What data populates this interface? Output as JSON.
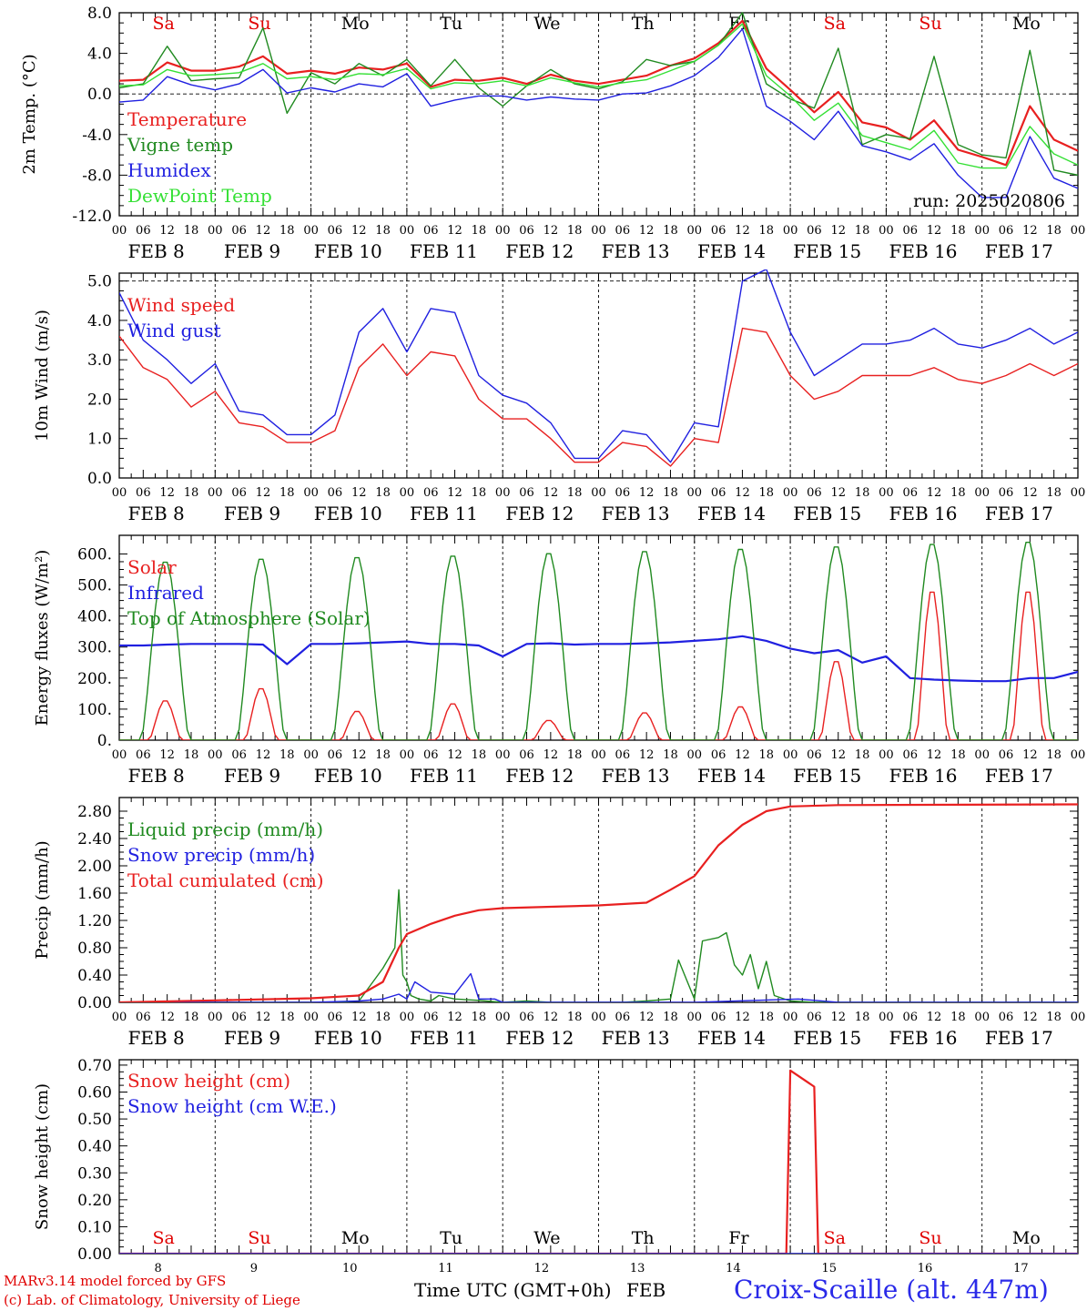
{
  "footer": {
    "credit_line1": "MARv3.14 model forced by GFS",
    "credit_line2": "(c) Lab. of Climatology, University of Liege",
    "xlabel": "Time UTC (GMT+0h)",
    "xunit": "FEB",
    "station": "Croix-Scaille (alt. 447m)"
  },
  "common": {
    "days": [
      "FEB  8",
      "FEB  9",
      "FEB 10",
      "FEB 11",
      "FEB 12",
      "FEB 13",
      "FEB 14",
      "FEB 15",
      "FEB 16",
      "FEB 17"
    ],
    "hour_ticks": [
      "00",
      "06",
      "12",
      "18"
    ],
    "final_tick": "00",
    "weekdays": [
      "Sa",
      "Su",
      "Mo",
      "Tu",
      "We",
      "Th",
      "Fr",
      "Sa",
      "Su",
      "Mo"
    ],
    "weekday_colors": [
      "#e00000",
      "#e00000",
      "#000000",
      "#000000",
      "#000000",
      "#000000",
      "#000000",
      "#e00000",
      "#e00000",
      "#000000"
    ],
    "day_numbers": [
      "8",
      "9",
      "10",
      "11",
      "12",
      "13",
      "14",
      "15",
      "16",
      "17"
    ],
    "time_start": "2025-02-08 00:00",
    "time_end": "2025-02-18 00:00"
  },
  "chart_data": [
    {
      "type": "line",
      "ylabel": "2m Temp. (°C)",
      "yticks": [
        "8.0",
        "4.0",
        "0.0",
        "-4.0",
        "-8.0",
        "-12.0"
      ],
      "ylim": [
        -12,
        8
      ],
      "reference_line": 0,
      "annotation": "run: 2025020806",
      "show_weekdays": true,
      "series": [
        {
          "name": "Temperature",
          "color": "#e82020",
          "hours": [
            0,
            6,
            12,
            18,
            24,
            30,
            36,
            42,
            48,
            54,
            60,
            66,
            72,
            78,
            84,
            90,
            96,
            102,
            108,
            114,
            120,
            126,
            132,
            138,
            144,
            150,
            156,
            162,
            168,
            174,
            180,
            186,
            192,
            198,
            204,
            210,
            216,
            222,
            228,
            234,
            240
          ],
          "values": [
            1.3,
            1.4,
            3.1,
            2.3,
            2.3,
            2.7,
            3.7,
            2.0,
            2.3,
            2.0,
            2.6,
            2.4,
            3.0,
            0.7,
            1.4,
            1.3,
            1.6,
            1.0,
            1.9,
            1.3,
            1.0,
            1.4,
            1.8,
            2.8,
            3.5,
            5.0,
            7.2,
            2.5,
            0.4,
            -1.8,
            0.2,
            -2.8,
            -3.3,
            -4.5,
            -2.6,
            -5.5,
            -6.2,
            -7.0,
            -1.2,
            -4.5,
            -5.6
          ]
        },
        {
          "name": "Vigne temp",
          "color": "#208a20",
          "hours": [
            0,
            6,
            12,
            18,
            24,
            30,
            36,
            42,
            48,
            54,
            60,
            66,
            72,
            78,
            84,
            90,
            96,
            102,
            108,
            114,
            120,
            126,
            132,
            138,
            144,
            150,
            156,
            162,
            168,
            174,
            180,
            186,
            192,
            198,
            204,
            210,
            216,
            222,
            228,
            234,
            240
          ],
          "values": [
            0.6,
            1.0,
            4.7,
            1.3,
            1.5,
            1.6,
            6.5,
            -1.9,
            2.1,
            1.0,
            3.0,
            1.8,
            3.4,
            0.8,
            3.4,
            0.6,
            -1.2,
            0.8,
            2.4,
            1.0,
            0.5,
            1.2,
            3.4,
            2.8,
            3.2,
            4.8,
            8.0,
            1.0,
            -0.5,
            -1.4,
            4.5,
            -5.0,
            -4.0,
            -4.4,
            3.7,
            -5.0,
            -6.0,
            -6.3,
            4.3,
            -7.5,
            -8.0
          ]
        },
        {
          "name": "Humidex",
          "color": "#2020e0",
          "hours": [
            0,
            6,
            12,
            18,
            24,
            30,
            36,
            42,
            48,
            54,
            60,
            66,
            72,
            78,
            84,
            90,
            96,
            102,
            108,
            114,
            120,
            126,
            132,
            138,
            144,
            150,
            156,
            162,
            168,
            174,
            180,
            186,
            192,
            198,
            204,
            210,
            216,
            222,
            228,
            234,
            240
          ],
          "values": [
            -0.8,
            -0.6,
            1.7,
            0.9,
            0.4,
            1.0,
            2.4,
            0.1,
            0.6,
            0.2,
            1.0,
            0.7,
            2.0,
            -1.2,
            -0.6,
            -0.2,
            -0.2,
            -0.6,
            -0.3,
            -0.5,
            -0.6,
            0.0,
            0.1,
            0.8,
            1.8,
            3.6,
            6.4,
            -1.2,
            -2.7,
            -4.5,
            -1.7,
            -5.1,
            -5.7,
            -6.5,
            -4.9,
            -8.0,
            -10.2,
            -10.2,
            -4.2,
            -8.3,
            -9.3
          ]
        },
        {
          "name": "DewPoint Temp",
          "color": "#34e034",
          "hours": [
            0,
            6,
            12,
            18,
            24,
            30,
            36,
            42,
            48,
            54,
            60,
            66,
            72,
            78,
            84,
            90,
            96,
            102,
            108,
            114,
            120,
            126,
            132,
            138,
            144,
            150,
            156,
            162,
            168,
            174,
            180,
            186,
            192,
            198,
            204,
            210,
            216,
            222,
            228,
            234,
            240
          ],
          "values": [
            0.8,
            0.9,
            2.4,
            1.8,
            1.9,
            2.1,
            3.0,
            1.5,
            1.7,
            1.4,
            2.0,
            1.9,
            2.5,
            0.5,
            1.1,
            1.0,
            1.3,
            0.8,
            1.6,
            1.1,
            0.7,
            1.1,
            1.4,
            2.3,
            3.2,
            4.8,
            6.9,
            1.8,
            -0.2,
            -2.6,
            -0.9,
            -4.1,
            -4.8,
            -5.5,
            -3.6,
            -6.8,
            -7.3,
            -7.3,
            -3.2,
            -5.9,
            -7.0
          ]
        }
      ]
    },
    {
      "type": "line",
      "ylabel": "10m Wind (m/s)",
      "yticks": [
        "5.0",
        "4.0",
        "3.0",
        "2.0",
        "1.0",
        "0.0"
      ],
      "ylim": [
        0,
        5.2
      ],
      "reference_line": 5,
      "show_weekdays": false,
      "series": [
        {
          "name": "Wind speed",
          "color": "#e82020",
          "hours": [
            0,
            6,
            12,
            18,
            24,
            30,
            36,
            42,
            48,
            54,
            60,
            66,
            72,
            78,
            84,
            90,
            96,
            102,
            108,
            114,
            120,
            126,
            132,
            138,
            144,
            150,
            156,
            162,
            168,
            174,
            180,
            186,
            192,
            198,
            204,
            210,
            216,
            222,
            228,
            234,
            240
          ],
          "values": [
            3.6,
            2.8,
            2.5,
            1.8,
            2.2,
            1.4,
            1.3,
            0.9,
            0.9,
            1.2,
            2.8,
            3.4,
            2.6,
            3.2,
            3.1,
            2.0,
            1.5,
            1.5,
            1.0,
            0.4,
            0.4,
            0.9,
            0.8,
            0.3,
            1.0,
            0.9,
            3.8,
            3.7,
            2.6,
            2.0,
            2.2,
            2.6,
            2.6,
            2.6,
            2.8,
            2.5,
            2.4,
            2.6,
            2.9,
            2.6,
            2.9
          ]
        },
        {
          "name": "Wind gust",
          "color": "#2020e0",
          "hours": [
            0,
            6,
            12,
            18,
            24,
            30,
            36,
            42,
            48,
            54,
            60,
            66,
            72,
            78,
            84,
            90,
            96,
            102,
            108,
            114,
            120,
            126,
            132,
            138,
            144,
            150,
            156,
            162,
            168,
            174,
            180,
            186,
            192,
            198,
            204,
            210,
            216,
            222,
            228,
            234,
            240
          ],
          "values": [
            4.7,
            3.5,
            3.0,
            2.4,
            2.9,
            1.7,
            1.6,
            1.1,
            1.1,
            1.6,
            3.7,
            4.3,
            3.2,
            4.3,
            4.2,
            2.6,
            2.1,
            1.9,
            1.4,
            0.5,
            0.5,
            1.2,
            1.1,
            0.4,
            1.4,
            1.3,
            5.0,
            5.3,
            3.7,
            2.6,
            3.0,
            3.4,
            3.4,
            3.5,
            3.8,
            3.4,
            3.3,
            3.5,
            3.8,
            3.4,
            3.7
          ]
        }
      ]
    },
    {
      "type": "line",
      "ylabel": "Energy fluxes (W/m²)",
      "yticks": [
        "600.",
        "500.",
        "400.",
        "300.",
        "200.",
        "100.",
        "0."
      ],
      "ylim": [
        0,
        660
      ],
      "show_weekdays": false,
      "series": [
        {
          "name": "Solar",
          "color": "#e82020",
          "peaks_per_day": [
            130,
            170,
            95,
            120,
            65,
            90,
            110,
            260,
            490,
            490
          ]
        },
        {
          "name": "Infrared",
          "color": "#2020e0",
          "hours": [
            0,
            6,
            12,
            18,
            24,
            30,
            36,
            42,
            48,
            54,
            60,
            66,
            72,
            78,
            84,
            90,
            96,
            102,
            108,
            114,
            120,
            126,
            132,
            138,
            144,
            150,
            156,
            162,
            168,
            174,
            180,
            186,
            192,
            198,
            204,
            210,
            216,
            222,
            228,
            234,
            240
          ],
          "values": [
            305,
            305,
            308,
            310,
            310,
            310,
            308,
            245,
            310,
            310,
            312,
            315,
            318,
            310,
            310,
            305,
            270,
            310,
            312,
            308,
            310,
            310,
            312,
            315,
            320,
            325,
            335,
            320,
            295,
            280,
            290,
            250,
            270,
            200,
            195,
            192,
            190,
            190,
            200,
            200,
            220
          ]
        },
        {
          "name": "Top of Atmosphere (Solar)",
          "color": "#208a20",
          "peaks_per_day": [
            580,
            590,
            595,
            600,
            608,
            615,
            622,
            630,
            638,
            645
          ]
        }
      ]
    },
    {
      "type": "line",
      "ylabel": "Precip (mm/h)",
      "yticks": [
        "2.80",
        "2.40",
        "2.00",
        "1.60",
        "1.20",
        "0.80",
        "0.40",
        "0.00"
      ],
      "ylim": [
        0,
        3.0
      ],
      "show_weekdays": false,
      "series": [
        {
          "name": "Liquid precip (mm/h)",
          "color": "#208a20",
          "hours": [
            0,
            6,
            12,
            18,
            24,
            30,
            36,
            42,
            48,
            54,
            60,
            66,
            69,
            70,
            71,
            72,
            73,
            75,
            78,
            80,
            84,
            90,
            96,
            102,
            108,
            114,
            120,
            126,
            132,
            138,
            140,
            144,
            146,
            150,
            152,
            154,
            156,
            158,
            160,
            162,
            164,
            168,
            174,
            180,
            240
          ],
          "values": [
            0,
            0,
            0,
            0,
            0,
            0,
            0,
            0,
            0,
            0,
            0.02,
            0.5,
            0.8,
            1.65,
            0.4,
            0.3,
            0.1,
            0.05,
            0.02,
            0.1,
            0.05,
            0.03,
            0,
            0.02,
            0,
            0,
            0,
            0,
            0.02,
            0.05,
            0.62,
            0.05,
            0.9,
            0.95,
            1.02,
            0.55,
            0.4,
            0.7,
            0.2,
            0.6,
            0.1,
            0.02,
            0,
            0,
            0
          ]
        },
        {
          "name": "Snow precip (mm/h)",
          "color": "#2020e0",
          "hours": [
            0,
            24,
            48,
            60,
            66,
            70,
            72,
            74,
            78,
            84,
            88,
            90,
            94,
            96,
            120,
            144,
            170,
            180,
            240
          ],
          "values": [
            0,
            0,
            0,
            0.02,
            0.05,
            0.12,
            0.05,
            0.3,
            0.15,
            0.12,
            0.42,
            0.05,
            0.05,
            0,
            0,
            0,
            0.05,
            0,
            0
          ]
        },
        {
          "name": "Total cumulated (cm)",
          "color": "#e82020",
          "hours": [
            0,
            24,
            48,
            60,
            66,
            70,
            72,
            78,
            84,
            90,
            96,
            108,
            120,
            132,
            138,
            144,
            150,
            156,
            162,
            168,
            180,
            240
          ],
          "values": [
            0,
            0.03,
            0.06,
            0.1,
            0.3,
            0.8,
            1.0,
            1.15,
            1.27,
            1.35,
            1.38,
            1.4,
            1.42,
            1.46,
            1.65,
            1.85,
            2.3,
            2.6,
            2.8,
            2.87,
            2.89,
            2.9
          ]
        }
      ]
    },
    {
      "type": "line",
      "ylabel": "Snow height (cm)",
      "yticks": [
        "0.70",
        "0.60",
        "0.50",
        "0.40",
        "0.30",
        "0.20",
        "0.10",
        "0.00"
      ],
      "ylim": [
        0,
        0.72
      ],
      "show_weekdays": true,
      "weekday_position": "bottom",
      "series": [
        {
          "name": "Snow height (cm)",
          "color": "#e82020",
          "hours": [
            0,
            167,
            168,
            174,
            175,
            240
          ],
          "values": [
            0,
            0,
            0.68,
            0.62,
            0,
            0
          ]
        },
        {
          "name": "Snow height (cm W.E.)",
          "color": "#2020e0",
          "hours": [
            0,
            240
          ],
          "values": [
            0,
            0
          ]
        }
      ]
    }
  ]
}
